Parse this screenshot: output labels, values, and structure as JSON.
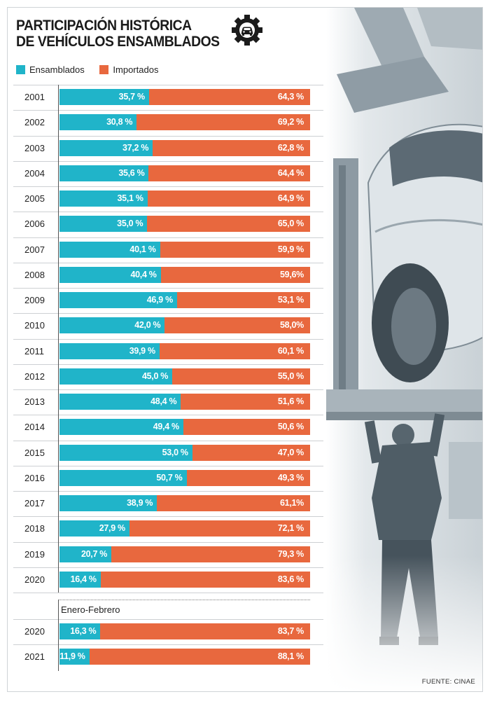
{
  "chart_data": {
    "type": "bar",
    "stacked": true,
    "orientation": "horizontal",
    "title_lines": [
      "PARTICIPACIÓN HISTÓRICA",
      "DE VEHÍCULOS ENSAMBLADOS"
    ],
    "legend": [
      "Ensamblados",
      "Importados"
    ],
    "colors": {
      "ensamblados": "#20b4c9",
      "importados": "#e8683e"
    },
    "xlim": [
      0,
      100
    ],
    "annual": [
      {
        "year": "2001",
        "ensamblados": 35.7,
        "importados": 64.3,
        "ens_label": "35,7 %",
        "imp_label": "64,3 %"
      },
      {
        "year": "2002",
        "ensamblados": 30.8,
        "importados": 69.2,
        "ens_label": "30,8 %",
        "imp_label": "69,2 %"
      },
      {
        "year": "2003",
        "ensamblados": 37.2,
        "importados": 62.8,
        "ens_label": "37,2 %",
        "imp_label": "62,8 %"
      },
      {
        "year": "2004",
        "ensamblados": 35.6,
        "importados": 64.4,
        "ens_label": "35,6 %",
        "imp_label": "64,4 %"
      },
      {
        "year": "2005",
        "ensamblados": 35.1,
        "importados": 64.9,
        "ens_label": "35,1 %",
        "imp_label": "64,9 %"
      },
      {
        "year": "2006",
        "ensamblados": 35.0,
        "importados": 65.0,
        "ens_label": "35,0 %",
        "imp_label": "65,0 %"
      },
      {
        "year": "2007",
        "ensamblados": 40.1,
        "importados": 59.9,
        "ens_label": "40,1 %",
        "imp_label": "59,9 %"
      },
      {
        "year": "2008",
        "ensamblados": 40.4,
        "importados": 59.6,
        "ens_label": "40,4 %",
        "imp_label": "59,6%"
      },
      {
        "year": "2009",
        "ensamblados": 46.9,
        "importados": 53.1,
        "ens_label": "46,9 %",
        "imp_label": "53,1 %"
      },
      {
        "year": "2010",
        "ensamblados": 42.0,
        "importados": 58.0,
        "ens_label": "42,0 %",
        "imp_label": "58,0%"
      },
      {
        "year": "2011",
        "ensamblados": 39.9,
        "importados": 60.1,
        "ens_label": "39,9 %",
        "imp_label": "60,1 %"
      },
      {
        "year": "2012",
        "ensamblados": 45.0,
        "importados": 55.0,
        "ens_label": "45,0 %",
        "imp_label": "55,0 %"
      },
      {
        "year": "2013",
        "ensamblados": 48.4,
        "importados": 51.6,
        "ens_label": "48,4 %",
        "imp_label": "51,6 %"
      },
      {
        "year": "2014",
        "ensamblados": 49.4,
        "importados": 50.6,
        "ens_label": "49,4 %",
        "imp_label": "50,6 %"
      },
      {
        "year": "2015",
        "ensamblados": 53.0,
        "importados": 47.0,
        "ens_label": "53,0 %",
        "imp_label": "47,0 %"
      },
      {
        "year": "2016",
        "ensamblados": 50.7,
        "importados": 49.3,
        "ens_label": "50,7 %",
        "imp_label": "49,3 %"
      },
      {
        "year": "2017",
        "ensamblados": 38.9,
        "importados": 61.1,
        "ens_label": "38,9 %",
        "imp_label": "61,1%"
      },
      {
        "year": "2018",
        "ensamblados": 27.9,
        "importados": 72.1,
        "ens_label": "27,9 %",
        "imp_label": "72,1 %"
      },
      {
        "year": "2019",
        "ensamblados": 20.7,
        "importados": 79.3,
        "ens_label": "20,7 %",
        "imp_label": "79,3 %"
      },
      {
        "year": "2020",
        "ensamblados": 16.4,
        "importados": 83.6,
        "ens_label": "16,4 %",
        "imp_label": "83,6 %"
      }
    ],
    "period_label": "Enero-Febrero",
    "period": [
      {
        "year": "2020",
        "ensamblados": 16.3,
        "importados": 83.7,
        "ens_label": "16,3 %",
        "imp_label": "83,7 %"
      },
      {
        "year": "2021",
        "ensamblados": 11.9,
        "importados": 88.1,
        "ens_label": "11,9 %",
        "imp_label": "88,1 %"
      }
    ],
    "source": "FUENTE: CINAE"
  },
  "icons": {
    "gear": "gear-car-icon"
  }
}
